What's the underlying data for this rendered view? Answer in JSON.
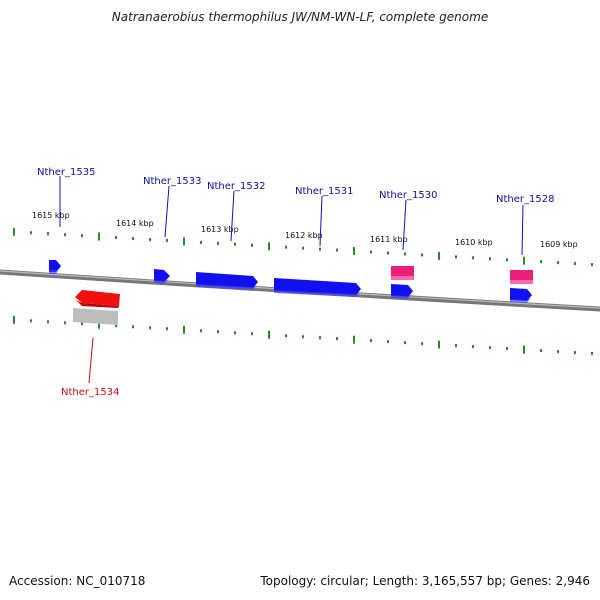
{
  "title": "Natranaerobius thermophilus JW/NM-WN-LF, complete genome",
  "footer": {
    "accession": "Accession: NC_010718",
    "summary": "Topology: circular; Length: 3,165,557 bp; Genes: 2,946"
  },
  "colors": {
    "gene_forward": "#1010f0",
    "gene_reverse": "#f01010",
    "gene_other": "#e8207a",
    "ruler": "#2a8a2a",
    "backbone": "#888888",
    "label_forward": "#1010a0",
    "label_reverse": "#c01010"
  },
  "ruler_labels": [
    "1615 kbp",
    "1614 kbp",
    "1613 kbp",
    "1612 kbp",
    "1611 kbp",
    "1610 kbp",
    "1609 kbp"
  ],
  "genes": [
    {
      "id": "Nther_1535",
      "strand": "forward",
      "labeled": true
    },
    {
      "id": "Nther_1534",
      "strand": "reverse",
      "labeled": true
    },
    {
      "id": "Nther_1533",
      "strand": "forward",
      "labeled": true
    },
    {
      "id": "Nther_1532",
      "strand": "forward",
      "labeled": true
    },
    {
      "id": "Nther_1531",
      "strand": "forward",
      "labeled": true
    },
    {
      "id": "Nther_1530",
      "strand": "forward",
      "labeled": true
    },
    {
      "id": "Nther_1528",
      "strand": "forward",
      "labeled": true
    },
    {
      "id": "",
      "strand": "other",
      "labeled": false
    },
    {
      "id": "",
      "strand": "other",
      "labeled": false
    }
  ]
}
